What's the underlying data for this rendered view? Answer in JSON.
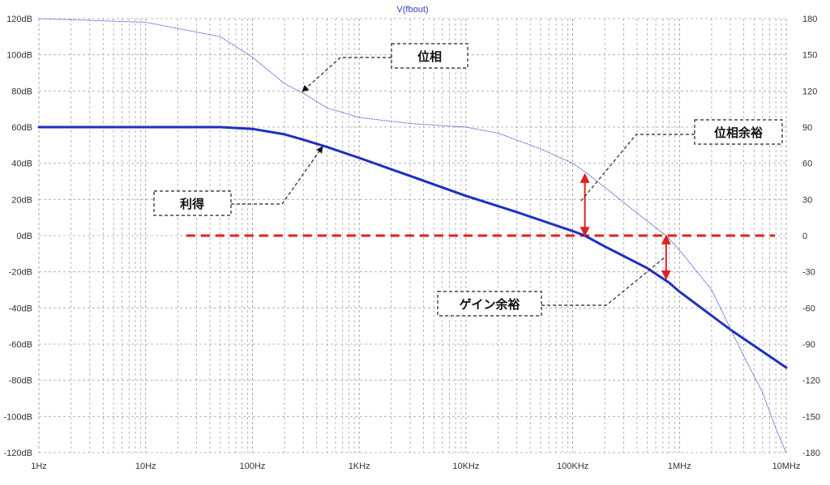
{
  "chart_data": {
    "type": "line",
    "title": "V(fbout)",
    "x_scale": "log",
    "xlim": [
      1,
      10000000
    ],
    "ylim_left": [
      -120,
      120
    ],
    "ylim_right": [
      -180,
      180
    ],
    "grid": true,
    "x_ticks": [
      {
        "value": 1,
        "label": "1Hz"
      },
      {
        "value": 10,
        "label": "10Hz"
      },
      {
        "value": 100,
        "label": "100Hz"
      },
      {
        "value": 1000,
        "label": "1KHz"
      },
      {
        "value": 10000,
        "label": "10KHz"
      },
      {
        "value": 100000,
        "label": "100KHz"
      },
      {
        "value": 1000000,
        "label": "1MHz"
      },
      {
        "value": 10000000,
        "label": "10MHz"
      }
    ],
    "y_left_ticks": [
      {
        "value": 120,
        "label": "120dB"
      },
      {
        "value": 100,
        "label": "100dB"
      },
      {
        "value": 80,
        "label": "80dB"
      },
      {
        "value": 60,
        "label": "60dB"
      },
      {
        "value": 40,
        "label": "40dB"
      },
      {
        "value": 20,
        "label": "20dB"
      },
      {
        "value": 0,
        "label": "0dB"
      },
      {
        "value": -20,
        "label": "-20dB"
      },
      {
        "value": -40,
        "label": "-40dB"
      },
      {
        "value": -60,
        "label": "-60dB"
      },
      {
        "value": -80,
        "label": "-80dB"
      },
      {
        "value": -100,
        "label": "-100dB"
      },
      {
        "value": -120,
        "label": "-120dB"
      }
    ],
    "y_right_ticks": [
      {
        "value": 180,
        "label": "180"
      },
      {
        "value": 150,
        "label": "150"
      },
      {
        "value": 120,
        "label": "120"
      },
      {
        "value": 90,
        "label": "90"
      },
      {
        "value": 60,
        "label": "60"
      },
      {
        "value": 30,
        "label": "30"
      },
      {
        "value": 0,
        "label": "0"
      },
      {
        "value": -30,
        "label": "-30"
      },
      {
        "value": -60,
        "label": "-60"
      },
      {
        "value": -90,
        "label": "-90"
      },
      {
        "value": -120,
        "label": "-120"
      },
      {
        "value": -150,
        "label": "-150"
      },
      {
        "value": -180,
        "label": "-180"
      }
    ],
    "series": [
      {
        "key": "gain",
        "axis": "left",
        "color": "#1f2fbf",
        "points": [
          [
            1,
            60
          ],
          [
            10,
            60
          ],
          [
            50,
            60
          ],
          [
            100,
            59
          ],
          [
            200,
            56
          ],
          [
            300,
            53
          ],
          [
            500,
            49
          ],
          [
            1000,
            43
          ],
          [
            3000,
            33
          ],
          [
            10000,
            22
          ],
          [
            30000,
            13
          ],
          [
            100000,
            2.5
          ],
          [
            130000,
            0
          ],
          [
            200000,
            -6
          ],
          [
            500000,
            -18
          ],
          [
            800000,
            -26
          ],
          [
            1000000,
            -31
          ],
          [
            3000000,
            -52
          ],
          [
            10000000,
            -73
          ]
        ]
      },
      {
        "key": "phase",
        "axis": "right",
        "color": "#4a5fd8",
        "points": [
          [
            1,
            180
          ],
          [
            10,
            177
          ],
          [
            50,
            165
          ],
          [
            100,
            148
          ],
          [
            200,
            126
          ],
          [
            300,
            118
          ],
          [
            500,
            106
          ],
          [
            1000,
            98
          ],
          [
            3000,
            93
          ],
          [
            10000,
            90
          ],
          [
            20000,
            85
          ],
          [
            50000,
            72
          ],
          [
            100000,
            60
          ],
          [
            130000,
            53
          ],
          [
            200000,
            40
          ],
          [
            500000,
            12
          ],
          [
            750000,
            0
          ],
          [
            1000000,
            -12
          ],
          [
            2000000,
            -45
          ],
          [
            4000000,
            -100
          ],
          [
            6000000,
            -130
          ],
          [
            8000000,
            -160
          ],
          [
            10000000,
            -180
          ]
        ]
      }
    ],
    "reference_line": {
      "axis": "left",
      "value": 0,
      "x_from": 24,
      "x_to": 10000000,
      "color": "#e02020"
    },
    "margin_arrows": [
      {
        "key": "phase_margin",
        "x": 130000,
        "from": 0,
        "to": 34,
        "color": "#e02020"
      },
      {
        "key": "gain_margin",
        "x": 750000,
        "from": 0,
        "to": -24,
        "color": "#e02020"
      }
    ],
    "annotations": [
      {
        "key": "phase",
        "text": "位相"
      },
      {
        "key": "phase_margin",
        "text": "位相余裕"
      },
      {
        "key": "gain",
        "text": "利得"
      },
      {
        "key": "gain_margin",
        "text": "ゲイン余裕"
      }
    ]
  }
}
